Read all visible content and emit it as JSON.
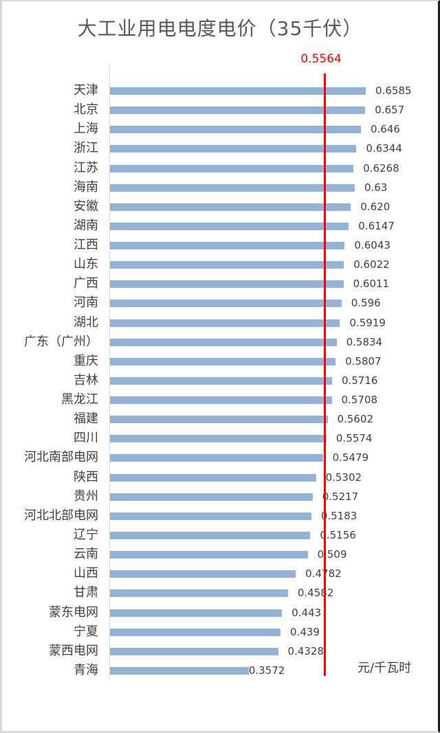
{
  "chart_data": {
    "type": "bar",
    "orientation": "horizontal",
    "title": "大工业用电电度电价（35千伏）",
    "xlabel": "",
    "ylabel": "",
    "unit_label": "元/千瓦时",
    "grid": false,
    "legend": null,
    "reference_line": {
      "value": 0.5564,
      "label": "0.5564",
      "color": "#ff0000"
    },
    "bar_color": "#95b3d7",
    "categories": [
      "天津",
      "北京",
      "上海",
      "浙江",
      "江苏",
      "海南",
      "安徽",
      "湖南",
      "江西",
      "山东",
      "广西",
      "河南",
      "湖北",
      "广东（广州）",
      "重庆",
      "吉林",
      "黑龙江",
      "福建",
      "四川",
      "河北南部电网",
      "陕西",
      "贵州",
      "河北北部电网",
      "辽宁",
      "云南",
      "山西",
      "甘肃",
      "蒙东电网",
      "宁夏",
      "蒙西电网",
      "青海"
    ],
    "values": [
      0.6585,
      0.657,
      0.646,
      0.6344,
      0.6268,
      0.63,
      0.62,
      0.6147,
      0.6043,
      0.6022,
      0.6011,
      0.596,
      0.5919,
      0.5834,
      0.5807,
      0.5716,
      0.5708,
      0.5602,
      0.5574,
      0.5479,
      0.5302,
      0.5217,
      0.5183,
      0.5156,
      0.509,
      0.4782,
      0.4582,
      0.443,
      0.439,
      0.4328,
      0.3572
    ],
    "value_labels": [
      "0.6585",
      "0.657",
      "0.646",
      "0.6344",
      "0.6268",
      "0.63",
      "0.620",
      "0.6147",
      "0.6043",
      "0.6022",
      "0.6011",
      "0.596",
      "0.5919",
      "0.5834",
      "0.5807",
      "0.5716",
      "0.5708",
      "0.5602",
      "0.5574",
      "0.5479",
      "0.5302",
      "0.5217",
      "0.5183",
      "0.5156",
      "0.509",
      "0.4782",
      "0.4582",
      "0.443",
      "0.439",
      "0.4328",
      "0.3572"
    ]
  }
}
